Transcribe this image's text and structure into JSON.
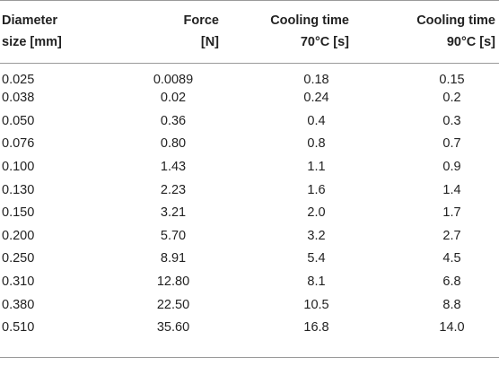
{
  "table": {
    "headers": [
      [
        "Diameter",
        "size [mm]"
      ],
      [
        "Force",
        "[N]"
      ],
      [
        "Cooling time",
        "70°C [s]"
      ],
      [
        "Cooling time",
        "90°C [s]"
      ]
    ],
    "rows": [
      [
        "0.025",
        "0.0089",
        "0.18",
        "0.15"
      ],
      [
        "0.038",
        "0.02",
        "0.24",
        "0.2"
      ],
      [
        "0.050",
        "0.36",
        "0.4",
        "0.3"
      ],
      [
        "0.076",
        "0.80",
        "0.8",
        "0.7"
      ],
      [
        "0.100",
        "1.43",
        "1.1",
        "0.9"
      ],
      [
        "0.130",
        "2.23",
        "1.6",
        "1.4"
      ],
      [
        "0.150",
        "3.21",
        "2.0",
        "1.7"
      ],
      [
        "0.200",
        "5.70",
        "3.2",
        "2.7"
      ],
      [
        "0.250",
        "8.91",
        "5.4",
        "4.5"
      ],
      [
        "0.310",
        "12.80",
        "8.1",
        "6.8"
      ],
      [
        "0.380",
        "22.50",
        "10.5",
        "8.8"
      ],
      [
        "0.510",
        "35.60",
        "16.8",
        "14.0"
      ]
    ]
  }
}
